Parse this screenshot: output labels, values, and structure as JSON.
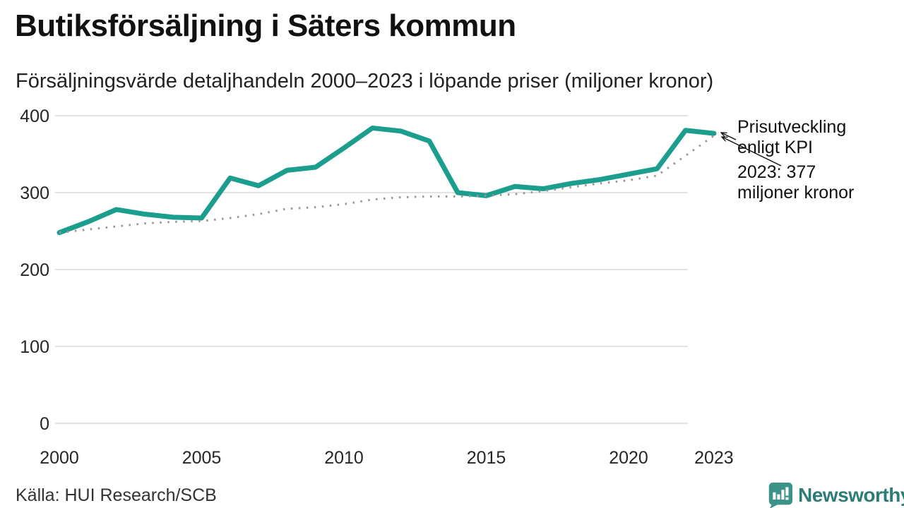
{
  "header": {
    "title": "Butiksförsäljning i Säters kommun",
    "subtitle": "Försäljningsvärde detaljhandeln 2000–2023 i löpande priser (miljoner kronor)"
  },
  "chart_data": {
    "type": "line",
    "title": "Butiksförsäljning i Säters kommun",
    "subtitle": "Försäljningsvärde detaljhandeln 2000–2023 i löpande priser (miljoner kronor)",
    "x": [
      2000,
      2001,
      2002,
      2003,
      2004,
      2005,
      2006,
      2007,
      2008,
      2009,
      2010,
      2011,
      2012,
      2013,
      2014,
      2015,
      2016,
      2017,
      2018,
      2019,
      2020,
      2021,
      2022,
      2023
    ],
    "series": [
      {
        "name": "Butiksförsäljning i löpande priser (miljoner kronor)",
        "color": "#1b9e8e",
        "style": "solid",
        "values": [
          248,
          262,
          278,
          272,
          268,
          267,
          319,
          309,
          329,
          333,
          358,
          384,
          380,
          367,
          300,
          296,
          308,
          305,
          312,
          317,
          324,
          331,
          381,
          377
        ]
      },
      {
        "name": "Prisutveckling enligt KPI",
        "color": "#989898",
        "style": "dotted",
        "values": [
          248,
          252,
          256,
          260,
          262,
          263,
          267,
          272,
          279,
          281,
          285,
          291,
          294,
          295,
          295,
          296,
          298,
          302,
          307,
          312,
          316,
          322,
          348,
          374
        ]
      }
    ],
    "ylim": [
      0,
      400
    ],
    "yticks": [
      0,
      100,
      200,
      300,
      400
    ],
    "xticks": [
      2000,
      2005,
      2010,
      2015,
      2020,
      2023
    ],
    "grid": "horizontal",
    "legend_position": "none",
    "final_value_2023": 377
  },
  "annotations": {
    "kpi_label": "Prisutveckling enligt KPI",
    "value_label": "2023: 377 miljoner kronor"
  },
  "footer": {
    "source": "Källa: HUI Research/SCB",
    "brand": "Newsworthy"
  },
  "colors": {
    "accent_teal": "#1b9e8e",
    "kpi_gray": "#989898",
    "grid_gray": "#e2e2e2",
    "text_dark": "#111111",
    "brand_teal": "#2d7d76",
    "logo_bubble": "#3b9288"
  }
}
